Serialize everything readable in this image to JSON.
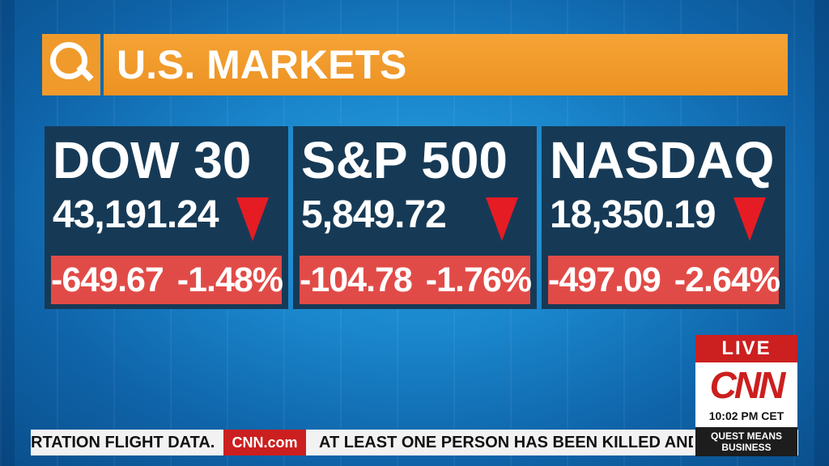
{
  "header": {
    "title": "U.S. MARKETS",
    "logo_icon": "q-logo-icon",
    "accent": "#f09a2b"
  },
  "markets": [
    {
      "name": "DOW 30",
      "value": "43,191.24",
      "direction": "down",
      "change": "-649.67",
      "percent": "-1.48%"
    },
    {
      "name": "S&P 500",
      "value": "5,849.72",
      "direction": "down",
      "change": "-104.78",
      "percent": "-1.76%"
    },
    {
      "name": "NASDAQ",
      "value": "18,350.19",
      "direction": "down",
      "change": "-497.09",
      "percent": "-2.64%"
    }
  ],
  "colors": {
    "panel_bg": "#163a56",
    "change_bg": "#e14b47",
    "arrow": "#e51c24",
    "cnn_red": "#cc1f1f"
  },
  "live_bug": {
    "label": "LIVE",
    "logo": "CNN",
    "time": "10:02 PM CET"
  },
  "ticker": {
    "left_text": "RTATION FLIGHT DATA.",
    "logo": "CNN.com",
    "right_text": "AT LEAST ONE PERSON HAS BEEN KILLED AND",
    "show_name": "QUEST MEANS BUSINESS"
  }
}
